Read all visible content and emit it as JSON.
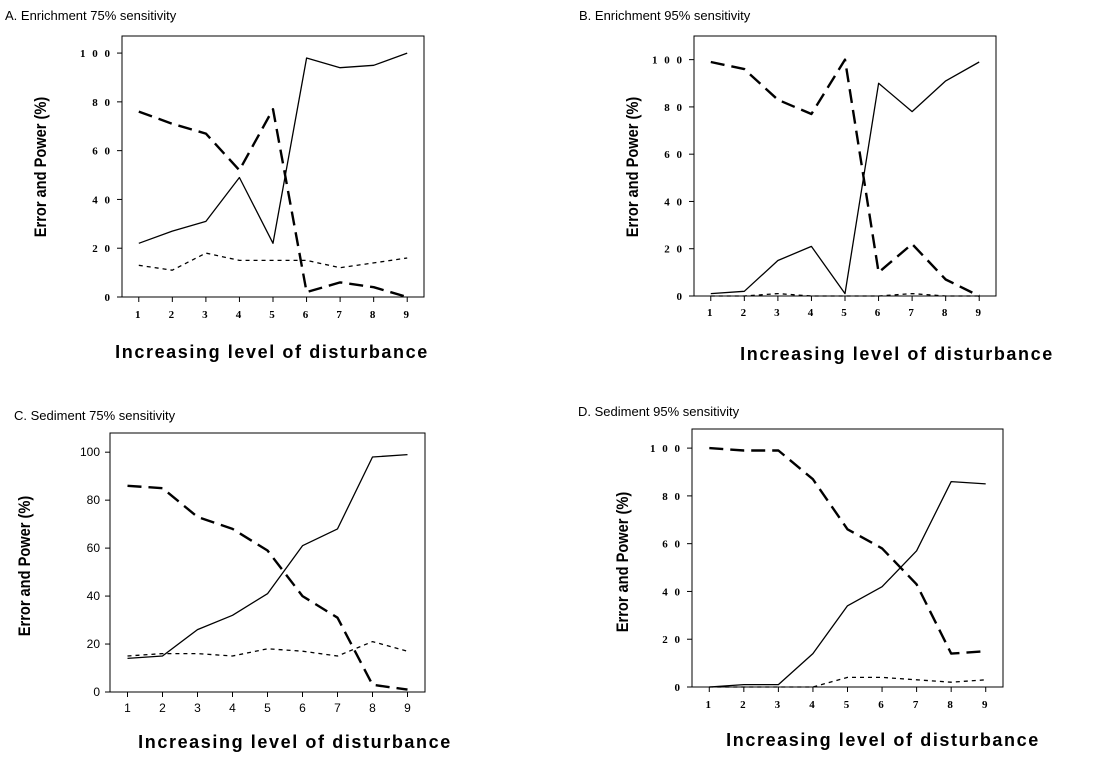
{
  "chart_data": [
    {
      "type": "line",
      "title": "A. Enrichment 75% sensitivity",
      "xlabel": "Increasing level of disturbance",
      "ylabel": "Error and Power (%)",
      "x_ticks": [
        "1",
        "2",
        "3",
        "4",
        "5",
        "6",
        "7",
        "8",
        "9"
      ],
      "y_ticks": [
        "0",
        "2 0",
        "4 0",
        "6 0",
        "8 0",
        "1 0 0"
      ],
      "y_tick_values": [
        0,
        20,
        40,
        60,
        80,
        100
      ],
      "x": [
        1,
        2,
        3,
        4,
        5,
        6,
        7,
        8,
        9
      ],
      "xlim": [
        0.5,
        9.5
      ],
      "ylim": [
        0,
        107
      ],
      "grid": false,
      "series": [
        {
          "style": "solid",
          "values": [
            22,
            27,
            31,
            49,
            22,
            98,
            94,
            95,
            100
          ]
        },
        {
          "style": "long-dash",
          "values": [
            76,
            71,
            67,
            52,
            77,
            2,
            6,
            4,
            0
          ]
        },
        {
          "style": "short-dash",
          "values": [
            13,
            11,
            18,
            15,
            15,
            15,
            12,
            14,
            16
          ]
        }
      ]
    },
    {
      "type": "line",
      "title": "B. Enrichment 95% sensitivity",
      "xlabel": "Increasing level of disturbance",
      "ylabel": "Error and Power (%)",
      "x_ticks": [
        "1",
        "2",
        "3",
        "4",
        "5",
        "6",
        "7",
        "8",
        "9"
      ],
      "y_ticks": [
        "0",
        "2 0",
        "4 0",
        "6 0",
        "8 0",
        "1 0 0"
      ],
      "y_tick_values": [
        0,
        20,
        40,
        60,
        80,
        100
      ],
      "x": [
        1,
        2,
        3,
        4,
        5,
        6,
        7,
        8,
        9
      ],
      "xlim": [
        0.5,
        9.5
      ],
      "ylim": [
        0,
        110
      ],
      "grid": false,
      "series": [
        {
          "style": "solid",
          "values": [
            1,
            2,
            15,
            21,
            1,
            90,
            78,
            91,
            99
          ]
        },
        {
          "style": "long-dash",
          "values": [
            99,
            96,
            83,
            77,
            100,
            10,
            22,
            7,
            0
          ]
        },
        {
          "style": "short-dash",
          "values": [
            0,
            0,
            1,
            0,
            0,
            0,
            1,
            0,
            0
          ]
        }
      ]
    },
    {
      "type": "line",
      "title": "C. Sediment 75% sensitivity",
      "xlabel": "Increasing level of disturbance",
      "ylabel": "Error and Power (%)",
      "x_ticks": [
        "1",
        "2",
        "3",
        "4",
        "5",
        "6",
        "7",
        "8",
        "9"
      ],
      "y_ticks": [
        "0",
        "20",
        "40",
        "60",
        "80",
        "100"
      ],
      "y_tick_values": [
        0,
        20,
        40,
        60,
        80,
        100
      ],
      "x": [
        1,
        2,
        3,
        4,
        5,
        6,
        7,
        8,
        9
      ],
      "xlim": [
        0.5,
        9.5
      ],
      "ylim": [
        0,
        108
      ],
      "grid": false,
      "series": [
        {
          "style": "solid",
          "values": [
            14,
            15,
            26,
            32,
            41,
            61,
            68,
            98,
            99
          ]
        },
        {
          "style": "long-dash",
          "values": [
            86,
            85,
            73,
            68,
            59,
            40,
            31,
            3,
            1
          ]
        },
        {
          "style": "short-dash",
          "values": [
            15,
            16,
            16,
            15,
            18,
            17,
            15,
            21,
            17
          ]
        }
      ]
    },
    {
      "type": "line",
      "title": "D. Sediment 95% sensitivity",
      "xlabel": "Increasing level of disturbance",
      "ylabel": "Error and Power (%)",
      "x_ticks": [
        "1",
        "2",
        "3",
        "4",
        "5",
        "6",
        "7",
        "8",
        "9"
      ],
      "y_ticks": [
        "0",
        "2 0",
        "4 0",
        "6 0",
        "8 0",
        "1 0 0"
      ],
      "y_tick_values": [
        0,
        20,
        40,
        60,
        80,
        100
      ],
      "x": [
        1,
        2,
        3,
        4,
        5,
        6,
        7,
        8,
        9
      ],
      "xlim": [
        0.5,
        9.5
      ],
      "ylim": [
        0,
        108
      ],
      "grid": false,
      "series": [
        {
          "style": "solid",
          "values": [
            0,
            1,
            1,
            14,
            34,
            42,
            57,
            86,
            85
          ]
        },
        {
          "style": "long-dash",
          "values": [
            100,
            99,
            99,
            87,
            66,
            58,
            43,
            14,
            15
          ]
        },
        {
          "style": "short-dash",
          "values": [
            0,
            0,
            0,
            0,
            4,
            4,
            3,
            2,
            3
          ]
        }
      ]
    }
  ]
}
